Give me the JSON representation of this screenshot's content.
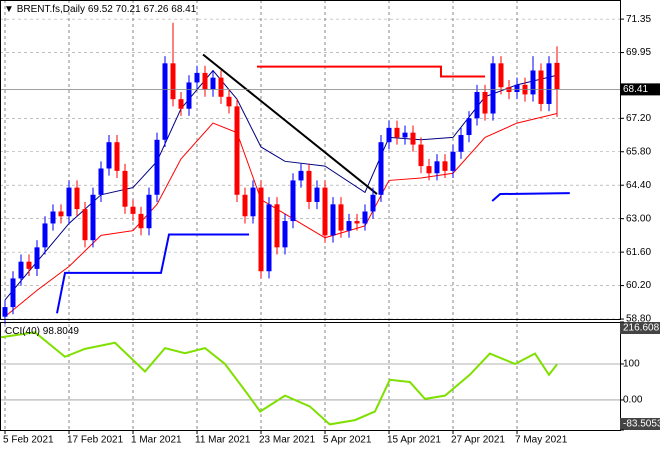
{
  "chart_data": {
    "type": "candlestick",
    "title": "BRENT.fs,Daily",
    "up_color": "#0000ff",
    "down_color": "#ff0000",
    "grid": true,
    "categories": [
      "5 Feb 2021",
      null,
      null,
      null,
      null,
      null,
      null,
      null,
      "17 Feb 2021",
      null,
      null,
      null,
      null,
      null,
      null,
      null,
      "1 Mar 2021",
      null,
      null,
      null,
      null,
      null,
      null,
      null,
      "11 Mar 2021",
      null,
      null,
      null,
      null,
      null,
      null,
      null,
      "23 Mar 2021",
      null,
      null,
      null,
      null,
      null,
      null,
      null,
      "5 Apr 2021",
      null,
      null,
      null,
      null,
      null,
      null,
      null,
      "15 Apr 2021",
      null,
      null,
      null,
      null,
      null,
      null,
      null,
      "27 Apr 2021",
      null,
      null,
      null,
      null,
      null,
      null,
      null,
      "7 May 2021",
      null,
      null,
      null,
      null,
      null
    ],
    "candles": [
      [
        58.9,
        59.6,
        58.6,
        59.3
      ],
      [
        59.3,
        60.8,
        59.0,
        60.5
      ],
      [
        60.5,
        61.5,
        60.2,
        61.2
      ],
      [
        61.2,
        61.5,
        60.6,
        60.9
      ],
      [
        60.9,
        62.1,
        60.6,
        61.8
      ],
      [
        61.8,
        63.1,
        61.5,
        62.8
      ],
      [
        62.8,
        63.6,
        62.5,
        63.3
      ],
      [
        63.3,
        63.6,
        62.8,
        63.1
      ],
      [
        63.1,
        64.6,
        62.8,
        64.3
      ],
      [
        64.3,
        64.6,
        63.1,
        63.4
      ],
      [
        63.4,
        63.7,
        61.8,
        62.1
      ],
      [
        62.1,
        64.3,
        61.8,
        64.0
      ],
      [
        64.0,
        65.4,
        63.7,
        65.1
      ],
      [
        65.1,
        66.5,
        64.8,
        66.2
      ],
      [
        66.2,
        66.5,
        64.7,
        65.0
      ],
      [
        65.0,
        65.3,
        63.2,
        63.5
      ],
      [
        63.5,
        63.8,
        62.9,
        63.2
      ],
      [
        63.2,
        63.5,
        62.3,
        62.6
      ],
      [
        62.6,
        64.3,
        62.3,
        64.0
      ],
      [
        64.0,
        66.6,
        63.7,
        66.3
      ],
      [
        66.3,
        69.8,
        66.0,
        69.5
      ],
      [
        69.5,
        71.2,
        67.7,
        68.0
      ],
      [
        68.0,
        68.3,
        67.3,
        67.6
      ],
      [
        67.6,
        69.0,
        67.3,
        68.7
      ],
      [
        68.7,
        69.4,
        68.4,
        69.1
      ],
      [
        69.1,
        69.4,
        68.1,
        68.4
      ],
      [
        68.4,
        69.2,
        68.1,
        68.9
      ],
      [
        68.9,
        69.2,
        67.8,
        68.1
      ],
      [
        68.1,
        68.4,
        67.4,
        67.7
      ],
      [
        67.7,
        68.0,
        63.7,
        64.0
      ],
      [
        64.0,
        64.3,
        62.8,
        63.1
      ],
      [
        63.1,
        64.6,
        62.8,
        64.3
      ],
      [
        64.3,
        64.6,
        60.5,
        60.8
      ],
      [
        60.8,
        63.9,
        60.5,
        63.6
      ],
      [
        63.6,
        63.9,
        61.5,
        61.8
      ],
      [
        61.8,
        63.2,
        61.5,
        62.9
      ],
      [
        62.9,
        64.9,
        62.6,
        64.6
      ],
      [
        64.6,
        65.3,
        64.3,
        65.0
      ],
      [
        65.0,
        65.3,
        63.4,
        63.7
      ],
      [
        63.7,
        64.6,
        63.4,
        64.3
      ],
      [
        64.3,
        64.6,
        62.0,
        62.3
      ],
      [
        62.3,
        63.9,
        62.0,
        63.6
      ],
      [
        63.6,
        63.9,
        62.2,
        62.5
      ],
      [
        62.5,
        63.2,
        62.2,
        62.9
      ],
      [
        62.9,
        63.2,
        62.5,
        62.8
      ],
      [
        62.8,
        63.6,
        62.5,
        63.3
      ],
      [
        63.3,
        64.3,
        63.0,
        64.0
      ],
      [
        64.0,
        66.5,
        63.7,
        66.2
      ],
      [
        66.2,
        67.1,
        65.9,
        66.8
      ],
      [
        66.8,
        67.1,
        66.1,
        66.4
      ],
      [
        66.4,
        66.9,
        66.1,
        66.6
      ],
      [
        66.6,
        66.9,
        65.8,
        66.1
      ],
      [
        66.1,
        66.4,
        64.9,
        65.2
      ],
      [
        65.2,
        65.5,
        64.6,
        64.9
      ],
      [
        64.9,
        65.7,
        64.6,
        65.4
      ],
      [
        65.4,
        65.7,
        64.7,
        65.0
      ],
      [
        65.0,
        66.1,
        64.7,
        65.8
      ],
      [
        65.8,
        66.8,
        65.5,
        66.5
      ],
      [
        66.5,
        67.5,
        66.2,
        67.2
      ],
      [
        67.2,
        68.6,
        66.9,
        68.3
      ],
      [
        68.3,
        68.6,
        67.1,
        67.4
      ],
      [
        67.4,
        69.8,
        67.1,
        69.5
      ],
      [
        69.5,
        69.8,
        68.2,
        68.5
      ],
      [
        68.5,
        68.8,
        68.0,
        68.3
      ],
      [
        68.3,
        68.9,
        68.0,
        68.6
      ],
      [
        68.6,
        68.9,
        67.9,
        68.2
      ],
      [
        68.2,
        69.8,
        67.9,
        69.2
      ],
      [
        69.2,
        69.5,
        67.5,
        67.8
      ],
      [
        67.8,
        69.8,
        67.5,
        69.5
      ],
      [
        69.52,
        70.21,
        67.26,
        68.41
      ]
    ],
    "ylim": [
      58.76,
      72.15
    ],
    "yticks": [
      71.35,
      69.95,
      {
        "value": 67.2,
        "label": "67.20"
      },
      {
        "value": 65.8,
        "label": "65.80"
      },
      {
        "value": 64.4,
        "label": "64.40"
      },
      {
        "value": 63.0,
        "label": "63.00"
      },
      {
        "value": 61.6,
        "label": "61.60"
      },
      {
        "value": 60.2,
        "label": "60.20"
      },
      {
        "value": 58.8,
        "label": "58.80"
      }
    ],
    "lines": [
      {
        "color": "#000080",
        "width": 1,
        "x": [
          0,
          4,
          8,
          12,
          16,
          19,
          22,
          26,
          29,
          32,
          35,
          40,
          45,
          48,
          52,
          56,
          60,
          64,
          69
        ],
        "values": [
          59.6,
          61.2,
          62.8,
          64.0,
          64.3,
          65.4,
          67.6,
          69.2,
          68.0,
          66.0,
          65.4,
          65.2,
          64.1,
          66.4,
          66.3,
          66.4,
          68.1,
          68.6,
          69.0
        ]
      },
      {
        "color": "#ff0000",
        "width": 1,
        "x": [
          0,
          4,
          8,
          12,
          16,
          19,
          22,
          26,
          29,
          32,
          35,
          40,
          45,
          48,
          52,
          56,
          60,
          64,
          69
        ],
        "values": [
          58.9,
          60.0,
          61.0,
          62.3,
          62.5,
          63.6,
          65.5,
          67.0,
          66.6,
          63.8,
          63.2,
          62.2,
          62.7,
          64.6,
          64.7,
          64.9,
          66.4,
          67.0,
          67.4
        ]
      },
      {
        "color": "#ff0000",
        "width": 2,
        "x": [
          31.5,
          54.5,
          54.5,
          60
        ],
        "values": [
          69.36,
          69.36,
          68.95,
          68.95
        ]
      },
      {
        "color": "#0000ff",
        "width": 2,
        "x": [
          6.5,
          7.5,
          19.5,
          20.5,
          30.5
        ],
        "values": [
          59.04,
          60.73,
          60.73,
          62.34,
          62.34
        ]
      },
      {
        "color": "#0000ff",
        "width": 2,
        "x": [
          60.9,
          61.9,
          70.6
        ],
        "values": [
          63.74,
          64.03,
          64.07
        ]
      },
      {
        "color": "#000000",
        "width": 2,
        "x": [
          24.75,
          46.5
        ],
        "values": [
          69.87,
          64.03
        ]
      }
    ],
    "cci": {
      "label": "CCI(40)",
      "color": "#7fe000",
      "x": [
        -0.6,
        3.75,
        7.5,
        10,
        13.75,
        17.5,
        20,
        22.5,
        25,
        27.5,
        30,
        31.9,
        35,
        38.1,
        40.6,
        43.75,
        46.25,
        48.1,
        50.6,
        52.5,
        55,
        58.1,
        60.6,
        63.75,
        66.25,
        68,
        69
      ],
      "values": [
        174,
        188,
        120,
        142,
        159,
        79,
        144,
        130,
        144,
        100,
        26,
        -32,
        12,
        -18,
        -68,
        -56,
        -32,
        56,
        50,
        3,
        12,
        70,
        129,
        100,
        129,
        70,
        98.8049
      ],
      "ylim": [
        -83.5053,
        216.608
      ],
      "yticks": [
        216.608,
        100,
        {
          "value": 0,
          "label": "0.00"
        },
        -83.5053
      ]
    }
  }
}
